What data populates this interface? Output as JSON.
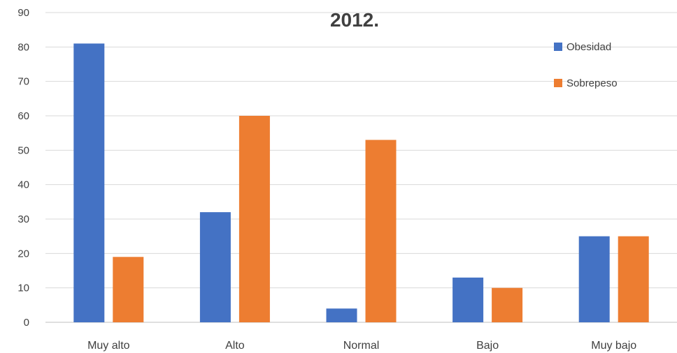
{
  "chart_data": {
    "type": "bar",
    "title": "2012.",
    "xlabel": "",
    "ylabel": "",
    "categories": [
      "Muy alto",
      "Alto",
      "Normal",
      "Bajo",
      "Muy bajo"
    ],
    "series": [
      {
        "name": "Obesidad",
        "color": "#4472C4",
        "values": [
          81,
          32,
          4,
          13,
          25
        ]
      },
      {
        "name": "Sobrepeso",
        "color": "#ED7D31",
        "values": [
          19,
          60,
          53,
          10,
          25
        ]
      }
    ],
    "ylim": [
      0,
      90
    ],
    "yticks": [
      0,
      10,
      20,
      30,
      40,
      50,
      60,
      70,
      80,
      90
    ],
    "grid": true,
    "legend_position": "top-right"
  }
}
